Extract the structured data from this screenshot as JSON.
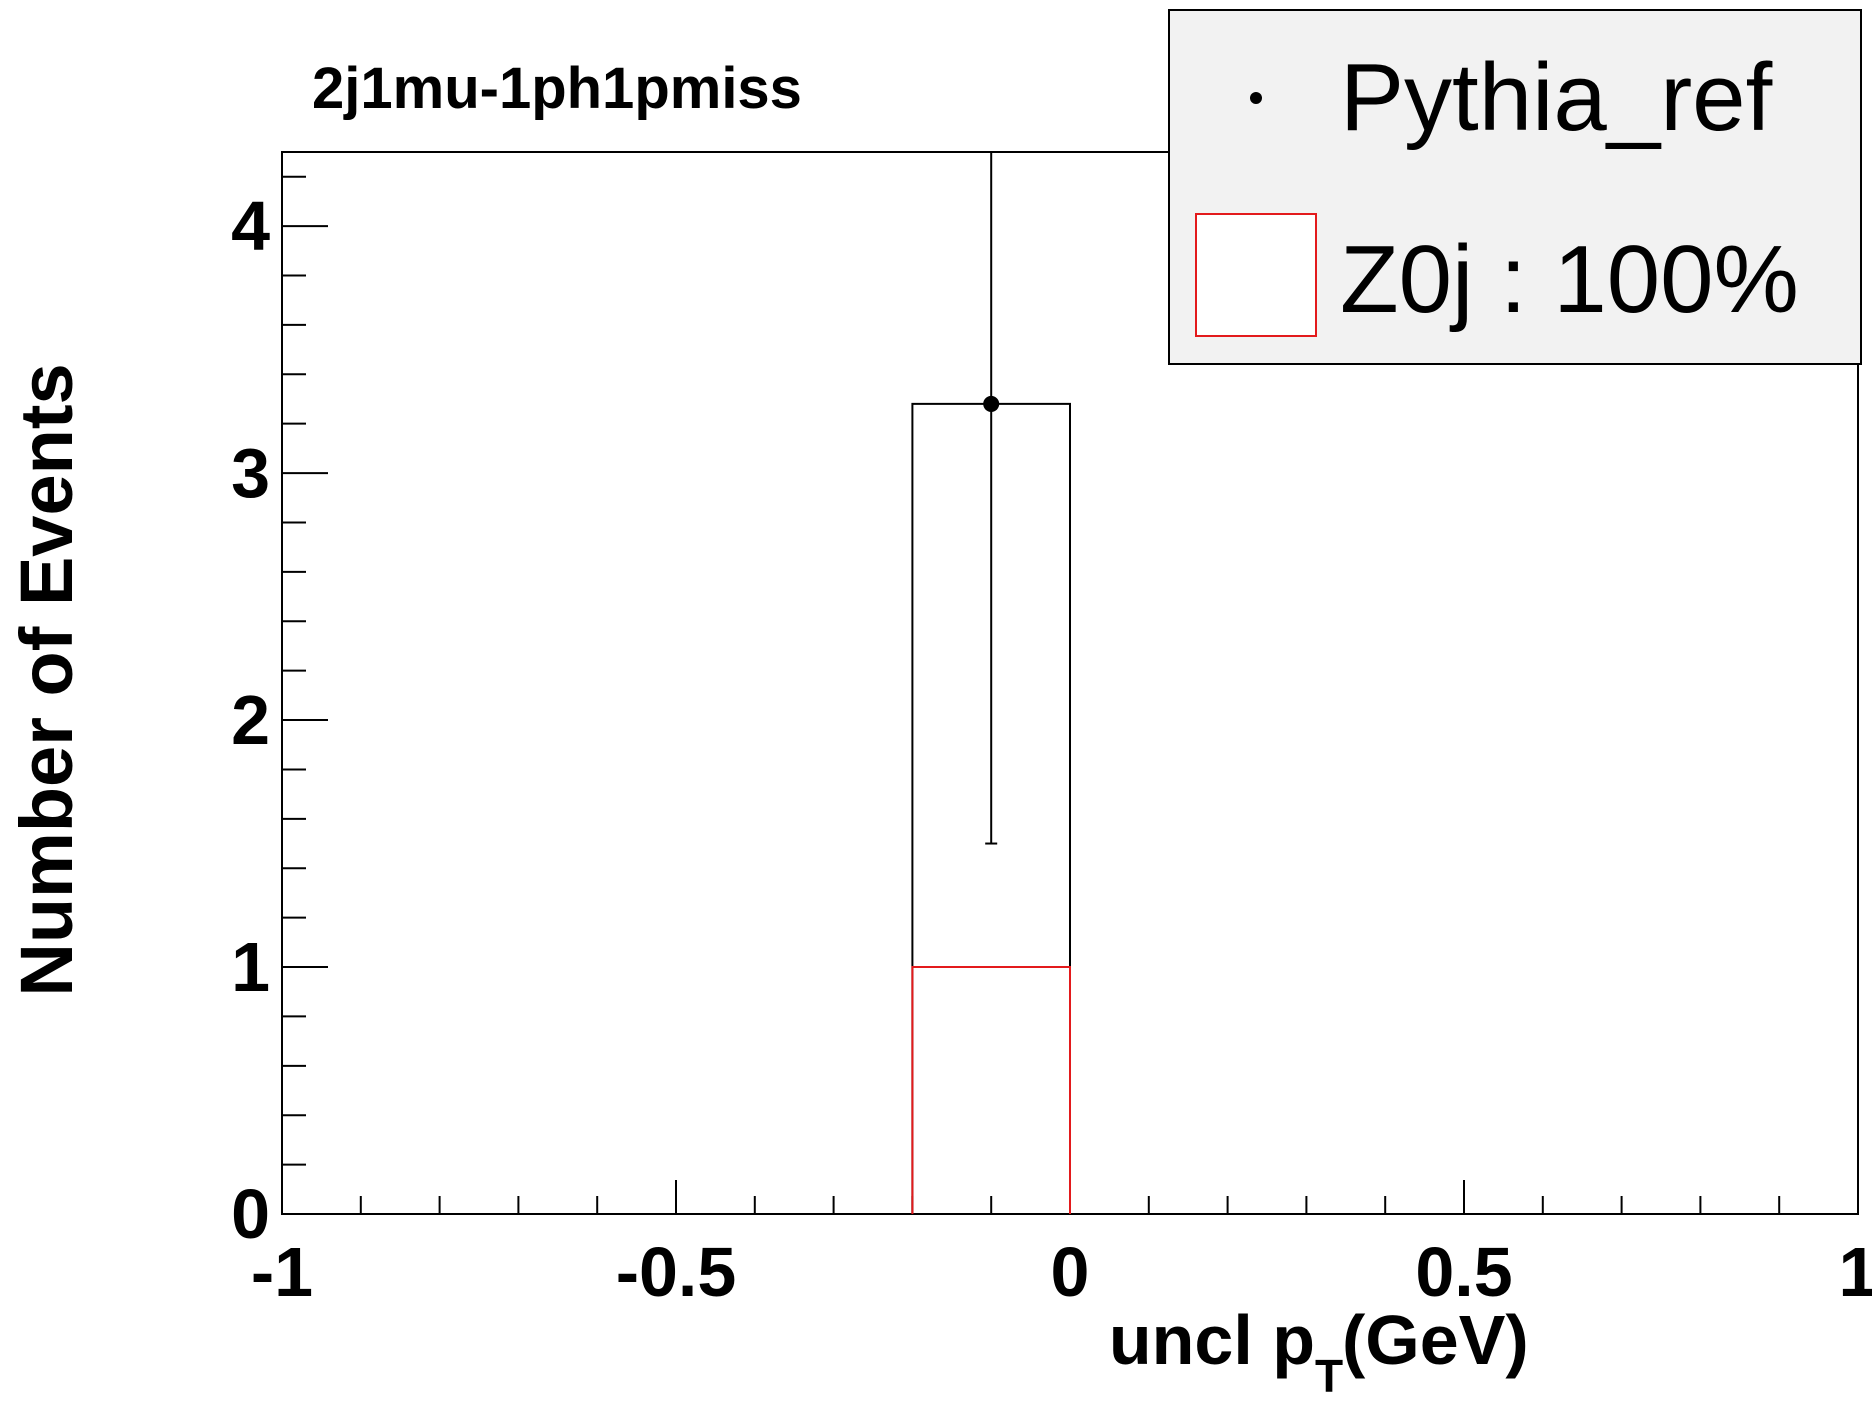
{
  "chart_data": {
    "type": "bar",
    "title": "2j1mu-1ph1pmiss",
    "xlabel": {
      "main": "uncl p",
      "sub": "T",
      "unit": " (GeV)"
    },
    "ylabel": "Number of Events",
    "xlim": [
      -1,
      1
    ],
    "ylim": [
      0,
      4.3
    ],
    "x_ticks": [
      {
        "value": -1,
        "label": "-1"
      },
      {
        "value": -0.5,
        "label": "-0.5"
      },
      {
        "value": 0,
        "label": "0"
      },
      {
        "value": 0.5,
        "label": "0.5"
      },
      {
        "value": 1,
        "label": "1"
      }
    ],
    "y_ticks": [
      {
        "value": 0,
        "label": "0"
      },
      {
        "value": 1,
        "label": "1"
      },
      {
        "value": 2,
        "label": "2"
      },
      {
        "value": 3,
        "label": "3"
      },
      {
        "value": 4,
        "label": "4"
      }
    ],
    "series": [
      {
        "name": "Pythia_ref",
        "kind": "histogram-points-with-errors",
        "color": "#000000",
        "bins": [
          {
            "x_low": -0.2,
            "x_high": 0.0,
            "value": 3.28,
            "err_low": 1.5,
            "err_high": 4.3
          }
        ]
      },
      {
        "name": "Z0j : 100%",
        "kind": "histogram-outline",
        "color": "#e31a1c",
        "bins": [
          {
            "x_low": -0.2,
            "x_high": 0.0,
            "value": 1.0
          }
        ]
      }
    ],
    "legend": {
      "placement": "top-right",
      "entries": [
        {
          "label": "Pythia_ref",
          "marker": "point"
        },
        {
          "label": "Z0j : 100%",
          "marker": "box"
        }
      ]
    }
  }
}
